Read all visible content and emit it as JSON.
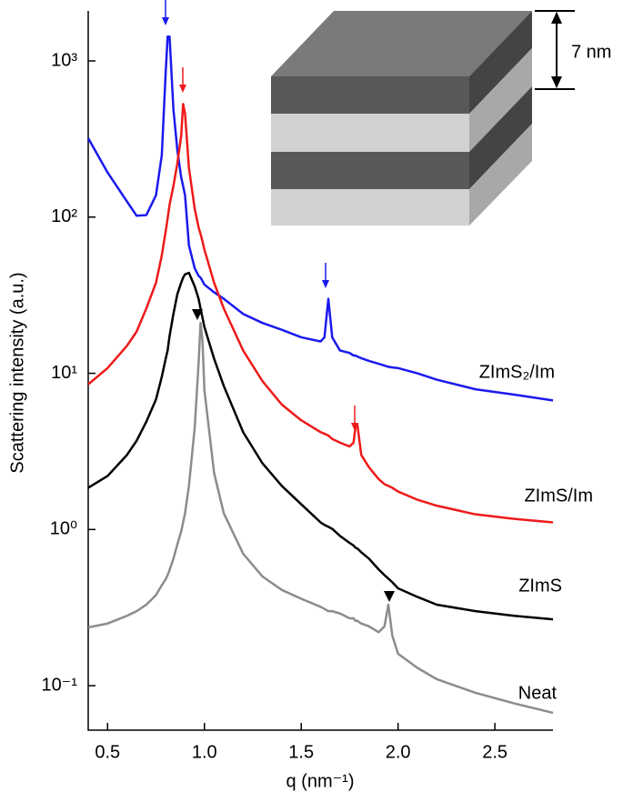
{
  "chart_data": {
    "type": "line",
    "y_label": "Scattering intensity (a.u.)",
    "x_label": "q (nm⁻¹)",
    "annotation": "7 nm",
    "log_y": true,
    "grid": false,
    "xlim": [
      0.4,
      2.8
    ],
    "ylim": [
      0.0519,
      2090
    ],
    "xticks": [
      0.5,
      {
        "value": 1,
        "label": "1.0"
      },
      1.5,
      {
        "value": 2,
        "label": "2.0"
      },
      2.5
    ],
    "yticks": [
      {
        "value": 0.1,
        "label": "10⁻¹"
      },
      {
        "value": 1,
        "label": "10⁰"
      },
      {
        "value": 10,
        "label": "10¹"
      },
      {
        "value": 100,
        "label": "10²"
      },
      {
        "value": 1000,
        "label": "10³"
      }
    ],
    "x": [
      0.4,
      0.5,
      0.6,
      0.65,
      0.7,
      0.75,
      0.78,
      0.8,
      0.81,
      0.82,
      0.84,
      0.86,
      0.88,
      0.89,
      0.9,
      0.92,
      0.95,
      0.97,
      0.98,
      0.99,
      1.0,
      1.05,
      1.1,
      1.2,
      1.3,
      1.4,
      1.5,
      1.6,
      1.62,
      1.64,
      1.66,
      1.7,
      1.75,
      1.77,
      1.78,
      1.79,
      1.81,
      1.85,
      1.9,
      1.93,
      1.95,
      1.97,
      2.0,
      2.1,
      2.2,
      2.4,
      2.6,
      2.8
    ],
    "series": [
      {
        "name": "ZImS₂/Im",
        "color": "#1a1aee",
        "values": [
          320,
          193,
          126,
          102,
          103,
          138,
          250,
          840,
          1430,
          1430,
          490,
          270,
          180,
          158,
          138,
          66,
          47,
          42,
          41,
          39,
          37,
          33,
          30,
          24,
          21,
          19,
          17,
          16,
          17,
          30,
          17,
          14,
          13.5,
          13,
          13,
          12.8,
          12.5,
          12,
          11.5,
          11.2,
          11,
          10.9,
          10.8,
          10,
          9.1,
          7.9,
          7.3,
          6.7
        ]
      },
      {
        "name": "ZImS/Im",
        "color": "#ee1a1a",
        "values": [
          8.5,
          10.8,
          15,
          18.5,
          26,
          38,
          57,
          81,
          98,
          120,
          158,
          220,
          330,
          530,
          460,
          207,
          113,
          86,
          78,
          70,
          62,
          38,
          26,
          14,
          8.9,
          6.3,
          5.0,
          4.2,
          4.1,
          4.0,
          3.8,
          3.6,
          3.4,
          3.6,
          4.5,
          4.7,
          3.0,
          2.5,
          2.1,
          1.95,
          1.9,
          1.85,
          1.75,
          1.55,
          1.42,
          1.25,
          1.17,
          1.11
        ]
      },
      {
        "name": "ZImS",
        "color": "#000000",
        "values": [
          1.85,
          2.2,
          3.0,
          3.7,
          4.9,
          6.8,
          9.5,
          12.4,
          14,
          17.3,
          24,
          32,
          38,
          41,
          43,
          44,
          36,
          30,
          26,
          22.7,
          19.8,
          12.4,
          8.3,
          4.2,
          2.65,
          1.9,
          1.45,
          1.11,
          1.07,
          1.04,
          1.01,
          0.91,
          0.82,
          0.79,
          0.765,
          0.755,
          0.715,
          0.65,
          0.555,
          0.51,
          0.485,
          0.46,
          0.42,
          0.37,
          0.33,
          0.3,
          0.28,
          0.266
        ]
      },
      {
        "name": "Neat",
        "color": "#8c8c8c",
        "values": [
          0.236,
          0.25,
          0.28,
          0.3,
          0.33,
          0.38,
          0.44,
          0.48,
          0.51,
          0.55,
          0.65,
          0.8,
          0.97,
          1.11,
          1.27,
          1.9,
          4.5,
          11.6,
          21,
          16.2,
          7.8,
          2.3,
          1.27,
          0.7,
          0.5,
          0.41,
          0.36,
          0.32,
          0.31,
          0.3,
          0.3,
          0.29,
          0.27,
          0.27,
          0.26,
          0.26,
          0.25,
          0.24,
          0.22,
          0.24,
          0.33,
          0.21,
          0.16,
          0.13,
          0.11,
          0.09,
          0.077,
          0.067
        ]
      }
    ]
  }
}
